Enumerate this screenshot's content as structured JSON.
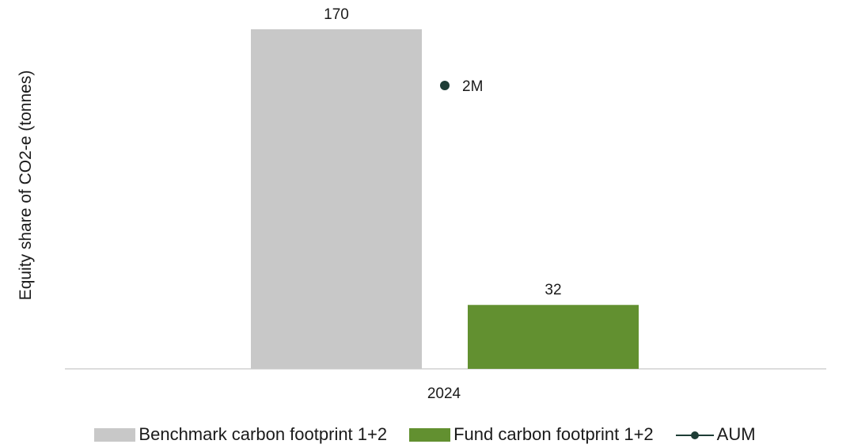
{
  "chart_data": {
    "type": "bar",
    "ylabel": "Equity share of CO2-e (tonnes)",
    "categories": [
      "2024"
    ],
    "ylim": [
      0,
      170
    ],
    "grid": false,
    "legend_position": "bottom",
    "series": [
      {
        "name": "Benchmark carbon footprint 1+2",
        "type": "bar",
        "values": [
          170
        ],
        "labels": [
          "170"
        ],
        "color": "#c8c8c8"
      },
      {
        "name": "Fund carbon footprint 1+2",
        "type": "bar",
        "values": [
          32
        ],
        "labels": [
          "32"
        ],
        "color": "#629030"
      },
      {
        "name": "AUM",
        "type": "line-marker",
        "values": [
          2
        ],
        "labels": [
          "2M"
        ],
        "color": "#1e3d36"
      }
    ]
  }
}
